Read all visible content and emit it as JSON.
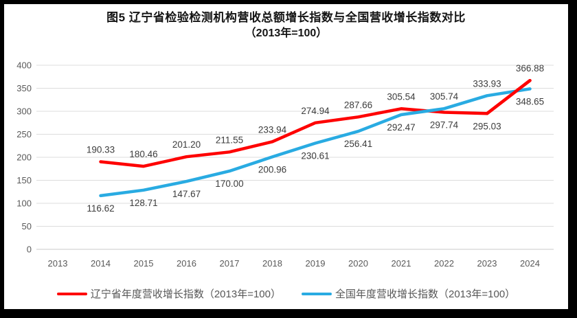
{
  "frame": {
    "background": "#ffffff",
    "border_color": "#000000"
  },
  "chart_data": {
    "type": "line",
    "title": "图5  辽宁省检验检测机构营收总额增长指数与全国营收增长指数对比",
    "subtitle": "（2013年=100）",
    "categories": [
      "2013",
      "2014",
      "2015",
      "2016",
      "2017",
      "2018",
      "2019",
      "2020",
      "2021",
      "2022",
      "2023",
      "2024"
    ],
    "series": [
      {
        "name": "辽宁省年度营收增长指数（2013年=100）",
        "color": "#fe0000",
        "values": [
          null,
          190.33,
          180.46,
          201.2,
          211.55,
          233.94,
          274.94,
          287.66,
          305.54,
          297.74,
          295.03,
          366.88
        ],
        "labels": [
          "",
          "190.33",
          "180.46",
          "201.20",
          "211.55",
          "233.94",
          "274.94",
          "287.66",
          "305.54",
          "297.74",
          "295.03",
          "366.88"
        ],
        "label_positions": [
          "",
          "above",
          "above",
          "above",
          "above",
          "above",
          "above",
          "above",
          "above",
          "below",
          "below",
          "above"
        ]
      },
      {
        "name": "全国年度营收增长指数（2013年=100）",
        "color": "#29abe2",
        "values": [
          null,
          116.62,
          128.71,
          147.67,
          170,
          200.96,
          230.61,
          256.41,
          292.47,
          305.74,
          333.93,
          348.65
        ],
        "labels": [
          "",
          "116.62",
          "128.71",
          "147.67",
          "170.00",
          "200.96",
          "230.61",
          "256.41",
          "292.47",
          "305.74",
          "333.93",
          "348.65"
        ],
        "label_positions": [
          "",
          "below",
          "below",
          "below",
          "below",
          "below",
          "below",
          "below",
          "below",
          "above",
          "above",
          "below"
        ]
      }
    ],
    "ylim": [
      0,
      400
    ],
    "yticks": [
      0,
      50,
      100,
      150,
      200,
      250,
      300,
      350,
      400
    ],
    "grid": true,
    "legend_position": "bottom",
    "colors": {
      "gridline": "#dcdcdc",
      "axis_line": "#c9c9c9",
      "tick_label": "#595959",
      "data_label": "#3c3c3c",
      "title": "#141414",
      "legend_text": "#565656"
    }
  }
}
